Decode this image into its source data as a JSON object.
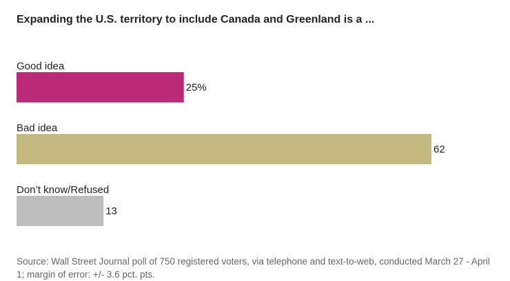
{
  "chart_data": {
    "type": "bar",
    "orientation": "horizontal",
    "title": "Expanding the U.S. territory to include Canada and Greenland is a ...",
    "categories": [
      "Good idea",
      "Bad idea",
      "Don’t know/Refused"
    ],
    "values": [
      25,
      62,
      13
    ],
    "value_labels": [
      "25%",
      "62",
      "13"
    ],
    "colors": [
      "#bb2a77",
      "#c2ba81",
      "#bdbdbd"
    ],
    "xlim": [
      0,
      62
    ],
    "grid": false,
    "legend": "none",
    "source": "Source: Wall Street Journal poll of 750 registered voters, via telephone and text-to-web, conducted March 27 - April 1; margin of error: +/- 3.6 pct. pts."
  }
}
